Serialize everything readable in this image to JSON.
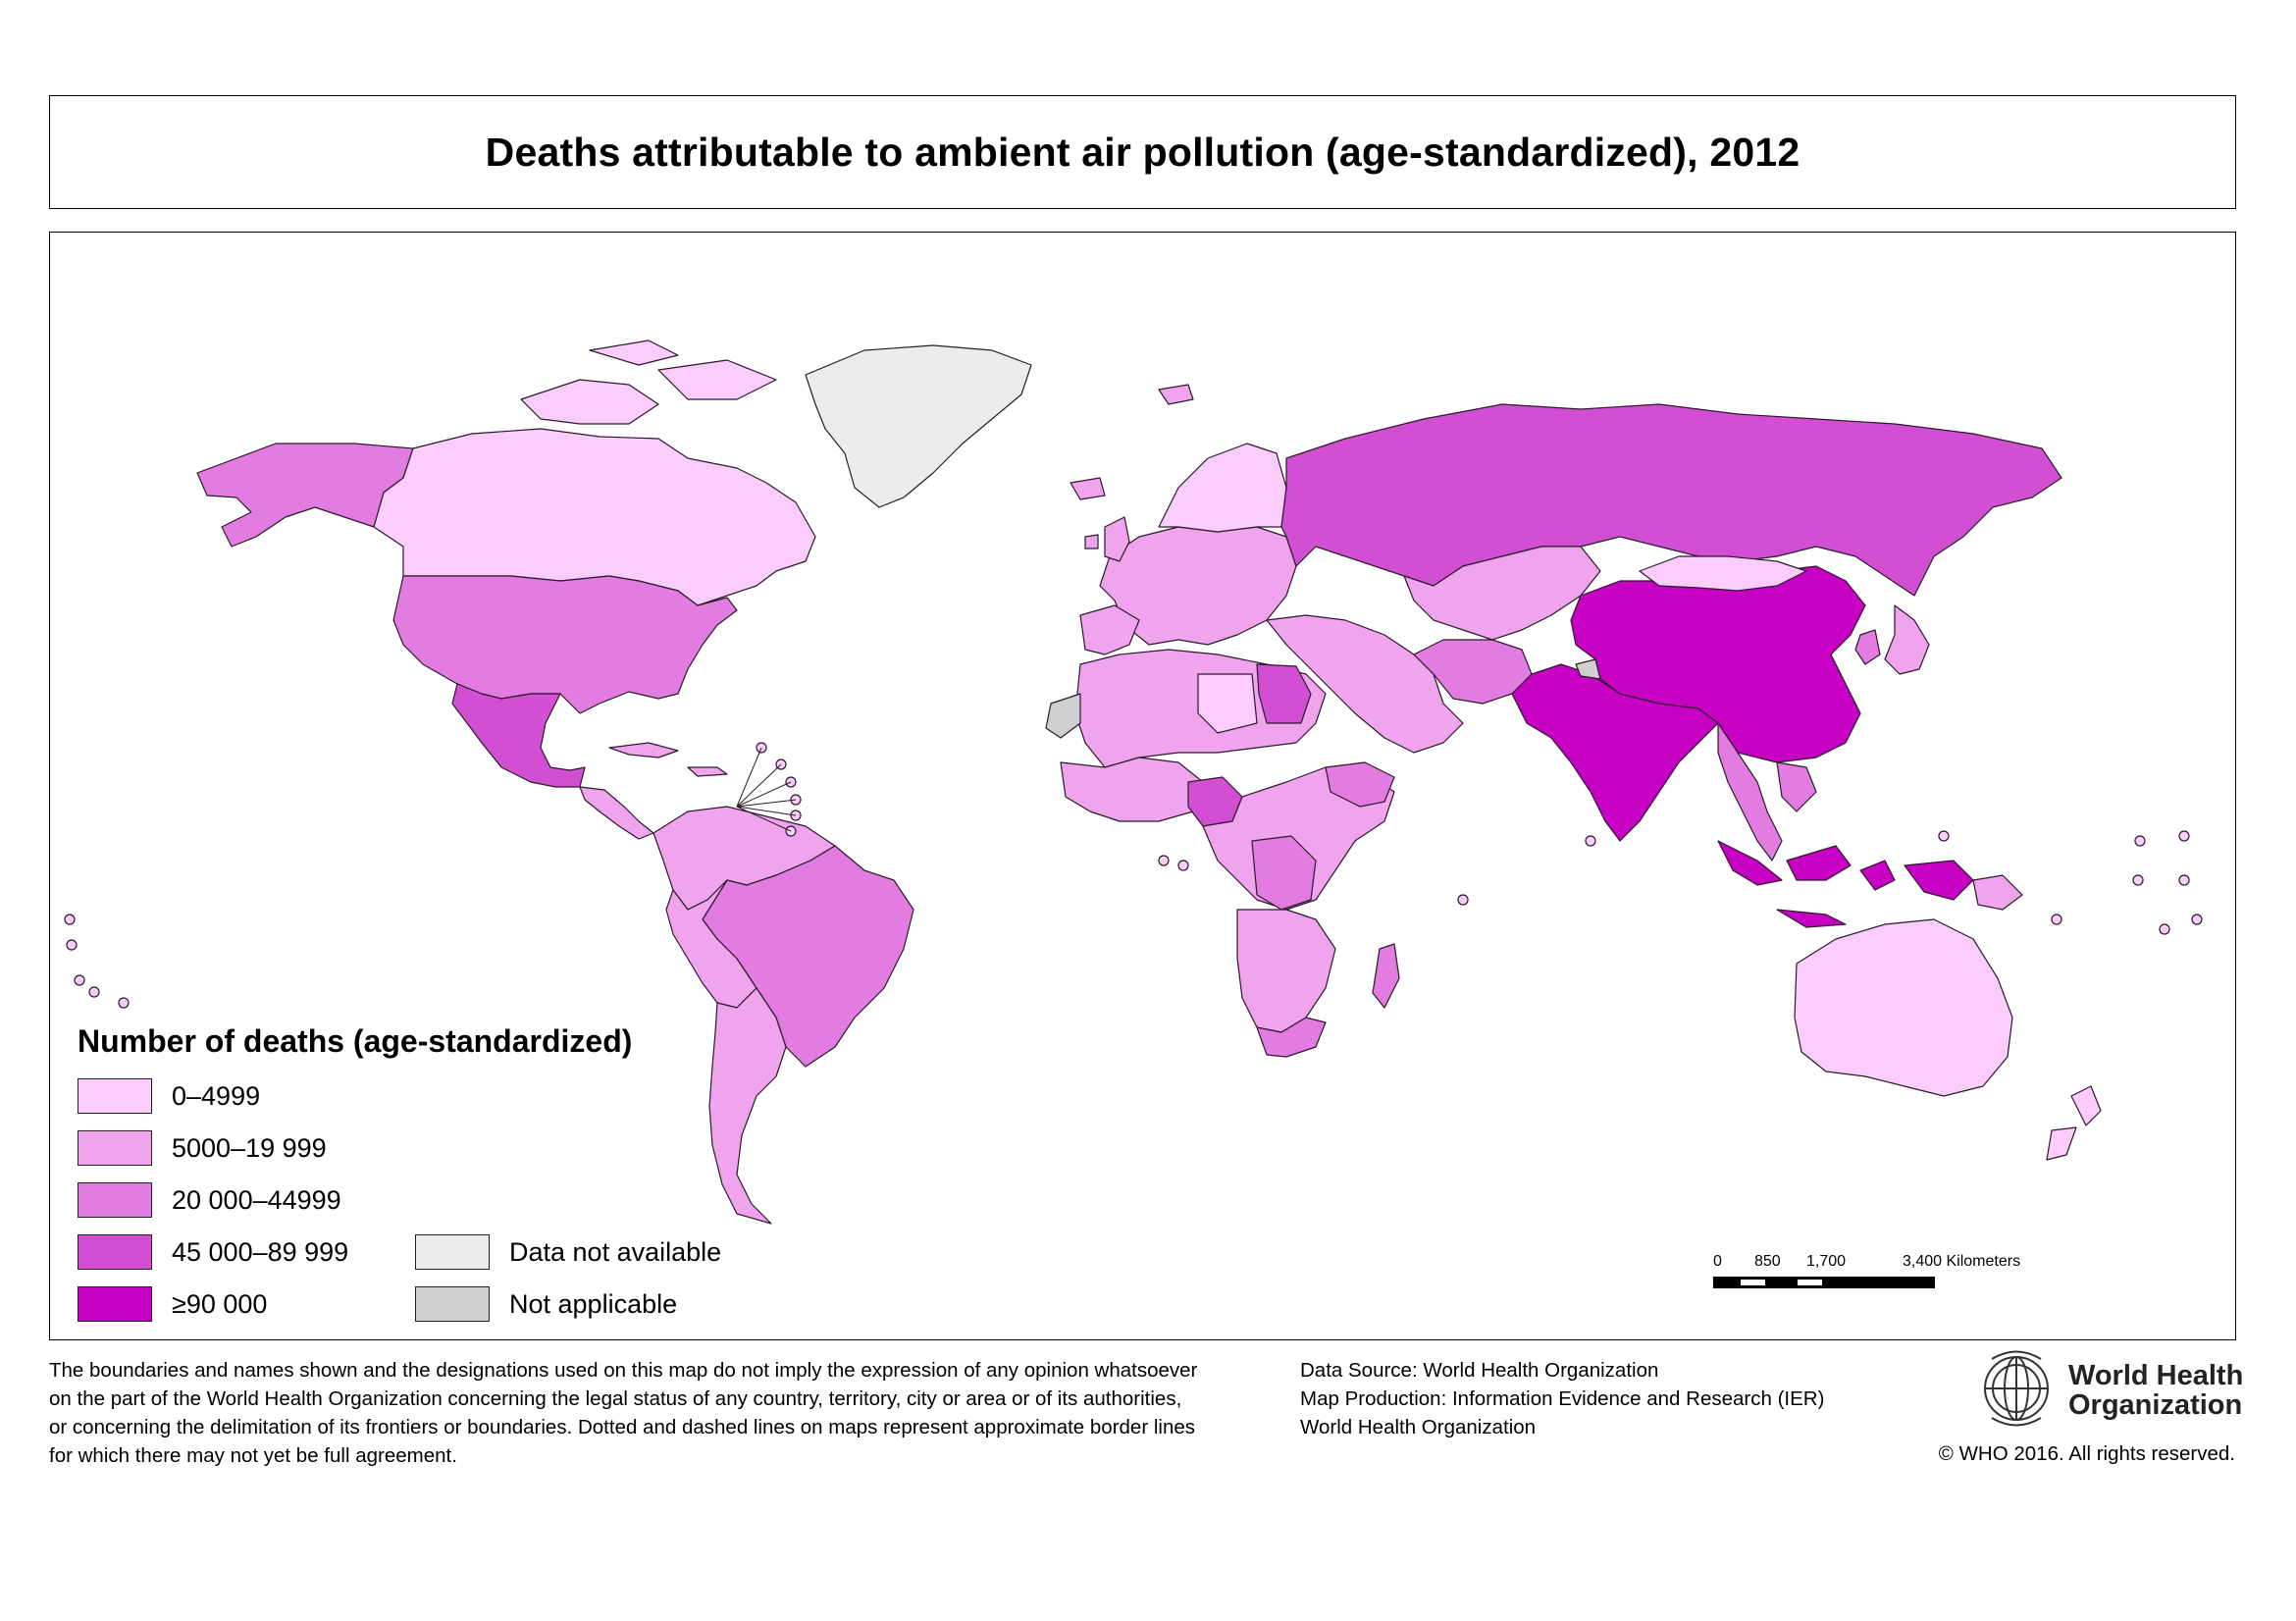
{
  "title": "Deaths attributable to ambient air pollution (age-standardized), 2012",
  "colors": {
    "c0": "#fcccfc",
    "c1": "#f0a4ee",
    "c2": "#e27ce0",
    "c3": "#d24ed2",
    "c4": "#c800c4",
    "na": "#ececec",
    "notapp": "#cfcfcf",
    "border": "#2a1a2a"
  },
  "legend": {
    "title": "Number of deaths (age-standardized)",
    "classes": [
      {
        "label": "0–4999",
        "color": "#fcccfc"
      },
      {
        "label": "5000–19 999",
        "color": "#f0a4ee"
      },
      {
        "label": "20 000–44999",
        "color": "#e27ce0"
      },
      {
        "label": "45 000–89 999",
        "color": "#d24ed2"
      },
      {
        "label": "≥90 000",
        "color": "#c800c4"
      }
    ],
    "special": [
      {
        "label": "Data not available",
        "color": "#ececec"
      },
      {
        "label": "Not applicable",
        "color": "#cfcfcf"
      }
    ]
  },
  "scalebar": {
    "labels": [
      "0",
      "850",
      "1,700",
      "3,400 Kilometers"
    ]
  },
  "disclaimer": [
    "The boundaries and names shown and the designations used on this map do not imply the expression of any opinion whatsoever",
    "on the part of the World Health Organization concerning the legal status of any country, territory, city or area or of its authorities,",
    "or concerning the delimitation of its frontiers or boundaries. Dotted and dashed lines on maps represent approximate border lines",
    "for which there may not yet be full agreement."
  ],
  "source": [
    "Data Source: World Health Organization",
    "Map Production: Information Evidence and Research (IER)",
    "World Health Organization"
  ],
  "who_logo": {
    "line1": "World Health",
    "line2": "Organization",
    "icon": "who-emblem-icon"
  },
  "copyright": "© WHO 2016. All rights reserved."
}
